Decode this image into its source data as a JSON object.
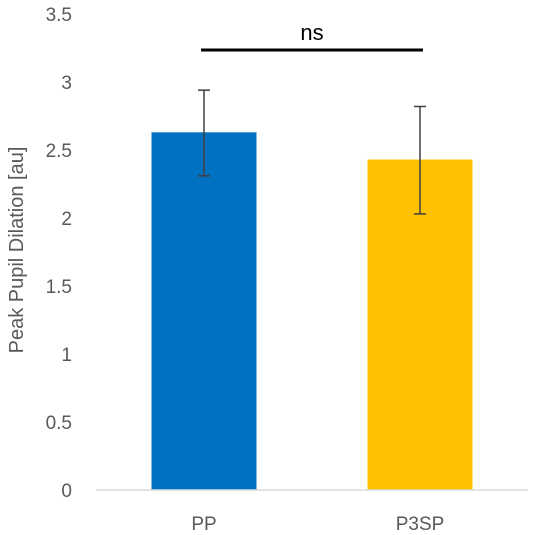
{
  "chart_data": {
    "type": "bar",
    "categories": [
      "PP",
      "P3SP"
    ],
    "values": [
      2.63,
      2.43
    ],
    "error_bars": {
      "upper": [
        2.94,
        2.82
      ],
      "lower": [
        2.31,
        2.03
      ]
    },
    "colors": [
      "#0070C0",
      "#FFC000"
    ],
    "title": "",
    "xlabel": "",
    "ylabel": "Peak Pupil Dilation [au]",
    "ylim": [
      0,
      3.5
    ],
    "yticks": [
      "0",
      "0.5",
      "1",
      "1.5",
      "2",
      "2.5",
      "3",
      "3.5"
    ],
    "grid": false,
    "annotation": {
      "text": "ns",
      "spans": [
        "PP",
        "P3SP"
      ]
    }
  }
}
